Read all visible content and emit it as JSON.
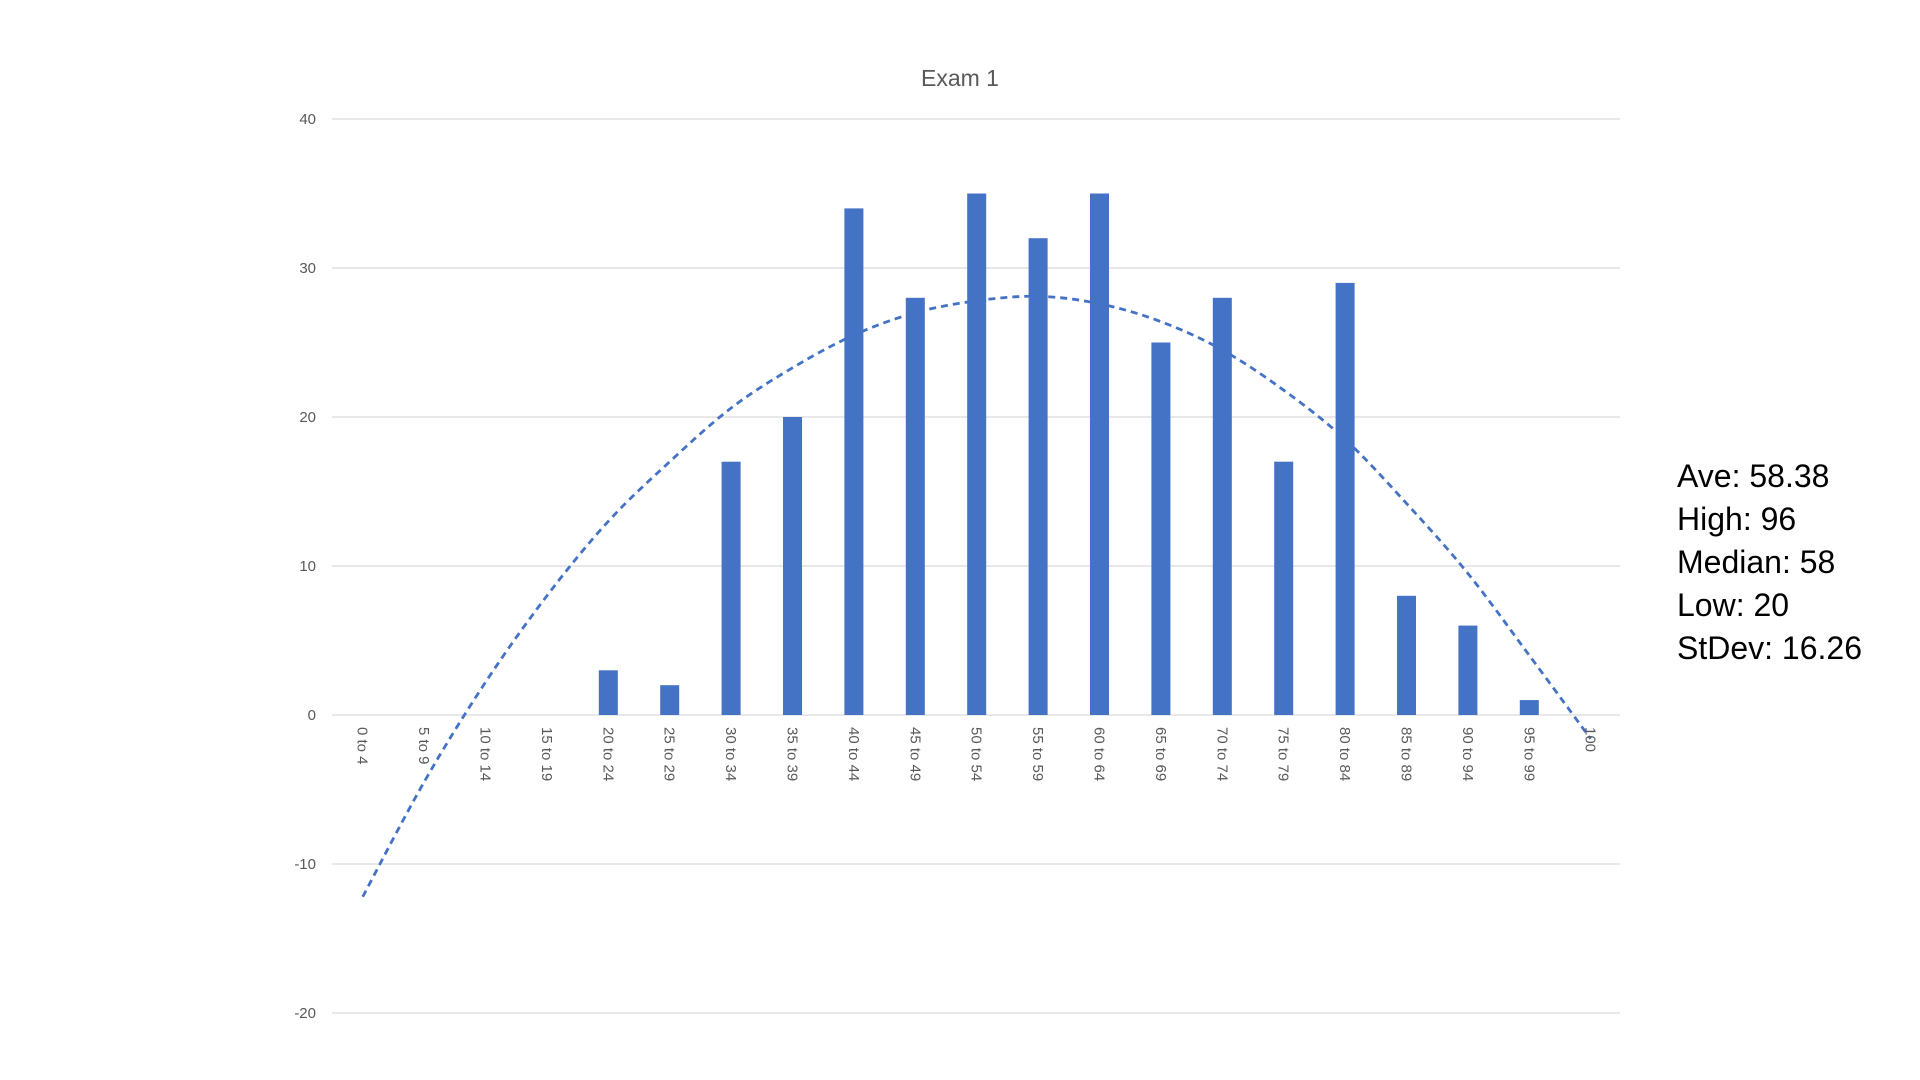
{
  "colors": {
    "bar": "#4472c4",
    "trendline": "#4472c4",
    "gridline": "#d9d9d9",
    "text": "#595959"
  },
  "chart_data": {
    "type": "bar",
    "title": "Exam 1",
    "xlabel": "",
    "ylabel": "",
    "ylim": [
      -20,
      40
    ],
    "yticks": [
      -20,
      -10,
      0,
      10,
      20,
      30,
      40
    ],
    "grid": true,
    "legend": "none",
    "categories": [
      "0 to 4",
      "5 to 9",
      "10 to 14",
      "15 to 19",
      "20 to 24",
      "25 to 29",
      "30 to 34",
      "35 to 39",
      "40 to 44",
      "45 to 49",
      "50 to 54",
      "55 to 59",
      "60 to 64",
      "65 to 69",
      "70 to 74",
      "75 to 79",
      "80 to 84",
      "85 to 89",
      "90 to 94",
      "95 to 99",
      "100"
    ],
    "values": [
      0,
      0,
      0,
      0,
      3,
      2,
      17,
      20,
      34,
      28,
      35,
      32,
      35,
      25,
      28,
      17,
      29,
      8,
      6,
      1,
      0
    ],
    "trendline": {
      "type": "polynomial",
      "style": "dashed",
      "values": [
        -12.2,
        -4.5,
        2.2,
        8.0,
        13.0,
        17.0,
        20.6,
        23.3,
        25.5,
        27.0,
        27.8,
        28.1,
        27.6,
        26.4,
        24.5,
        21.8,
        18.5,
        14.2,
        9.5,
        4.0,
        -1.6
      ]
    }
  },
  "stats": {
    "ave": "Ave: 58.38",
    "high": "High: 96",
    "median": "Median: 58",
    "low": "Low: 20",
    "stdev": "StDev: 16.26"
  }
}
